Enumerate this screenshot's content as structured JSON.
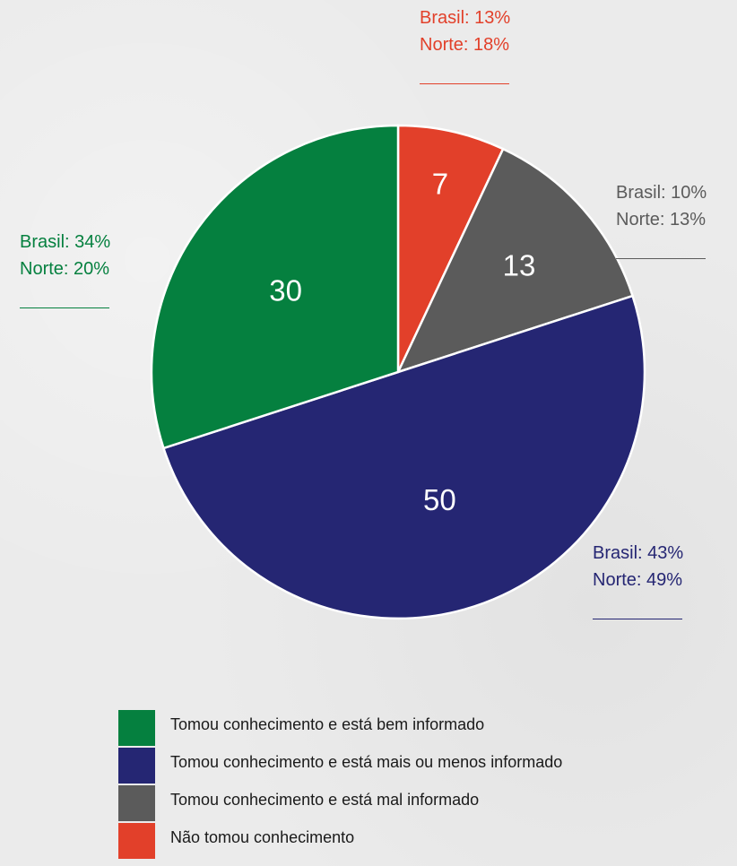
{
  "chart_data": {
    "type": "pie",
    "categories": [
      "Não tomou conhecimento",
      "Tomou conhecimento e está mal informado",
      "Tomou conhecimento e está mais ou menos informado",
      "Tomou conhecimento e está bem informado"
    ],
    "values": [
      7,
      13,
      50,
      30
    ],
    "value_labels": [
      "7",
      "13",
      "50",
      "30"
    ],
    "colors": [
      "#e2402a",
      "#5b5b5b",
      "#252673",
      "#05803f"
    ],
    "legend_position": "bottom",
    "annotations": [
      {
        "category": "Não tomou conhecimento",
        "lines": [
          "Brasil: 13%",
          "Norte: 18%"
        ]
      },
      {
        "category": "Tomou conhecimento e está mal informado",
        "lines": [
          "Brasil: 10%",
          "Norte: 13%"
        ]
      },
      {
        "category": "Tomou conhecimento e está mais ou menos informado",
        "lines": [
          "Brasil: 43%",
          "Norte: 49%"
        ]
      },
      {
        "category": "Tomou conhecimento e está bem informado",
        "lines": [
          "Brasil: 34%",
          "Norte: 20%"
        ]
      }
    ]
  },
  "legend": {
    "items": [
      {
        "label": "Tomou conhecimento e está bem informado",
        "color": "#05803f"
      },
      {
        "label": "Tomou conhecimento e está mais ou menos informado",
        "color": "#252673"
      },
      {
        "label": "Tomou conhecimento e está mal informado",
        "color": "#5b5b5b"
      },
      {
        "label": "Não tomou conhecimento",
        "color": "#e2402a"
      }
    ]
  }
}
